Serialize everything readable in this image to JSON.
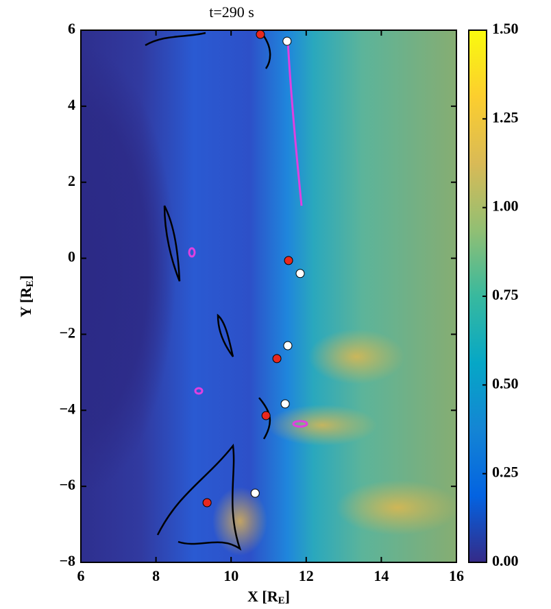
{
  "chart_data": {
    "type": "scatter",
    "title": "t=290 s",
    "xlabel": [
      "X [R",
      "E",
      "]"
    ],
    "ylabel": [
      "Y [R",
      "E",
      "]"
    ],
    "xlim": [
      6,
      16
    ],
    "ylim": [
      -8,
      6
    ],
    "xticks": [
      6,
      8,
      10,
      12,
      14,
      16
    ],
    "yticks": [
      {
        "value": -8,
        "label": "−8"
      },
      {
        "value": -6,
        "label": "−6"
      },
      {
        "value": -4,
        "label": "−4"
      },
      {
        "value": -2,
        "label": "−2"
      },
      0,
      2,
      4,
      6
    ],
    "series": [
      {
        "color": "#e8281e",
        "x": [
          10.78,
          11.53,
          11.22,
          10.93,
          9.36
        ],
        "values": [
          5.89,
          -0.06,
          -2.64,
          -4.14,
          -6.43
        ]
      },
      {
        "color": "#ffffff",
        "x": [
          11.49,
          11.84,
          11.51,
          11.44,
          10.64
        ],
        "values": [
          5.71,
          -0.4,
          -2.3,
          -3.83,
          -6.18
        ]
      }
    ],
    "colorbar": {
      "clim": [
        0,
        1.5
      ],
      "ticks": [
        {
          "value": 0,
          "label": "0.00"
        },
        {
          "value": 0.25,
          "label": "0.25"
        },
        {
          "value": 0.5,
          "label": "0.50"
        },
        {
          "value": 0.75,
          "label": "0.75"
        },
        {
          "value": 1,
          "label": "1.00"
        },
        {
          "value": 1.25,
          "label": "1.25"
        },
        {
          "value": 1.5,
          "label": "1.50"
        }
      ],
      "colormap": [
        "#352a87",
        "#0363e1",
        "#1485d4",
        "#06a7c6",
        "#38b99e",
        "#92bf73",
        "#d9ba56",
        "#fcce2e",
        "#f9fb0e"
      ]
    }
  }
}
